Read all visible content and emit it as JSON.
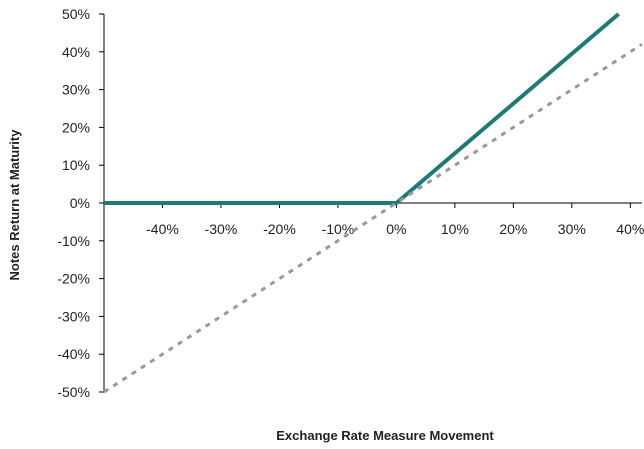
{
  "chart_data": {
    "type": "line",
    "title": "",
    "xlabel": "Exchange Rate  Measure Movement",
    "ylabel": "Notes Return at Maturity",
    "xlim": [
      -50,
      42
    ],
    "ylim": [
      -50,
      50
    ],
    "x_ticks": [
      {
        "value": -40,
        "label": "-40%"
      },
      {
        "value": -30,
        "label": "-30%"
      },
      {
        "value": -20,
        "label": "-20%"
      },
      {
        "value": -10,
        "label": "-10%"
      },
      {
        "value": 0,
        "label": "0%"
      },
      {
        "value": 10,
        "label": "10%"
      },
      {
        "value": 20,
        "label": "20%"
      },
      {
        "value": 30,
        "label": "30%"
      },
      {
        "value": 40,
        "label": "40%"
      }
    ],
    "y_ticks": [
      {
        "value": 50,
        "label": "50%"
      },
      {
        "value": 40,
        "label": "40%"
      },
      {
        "value": 30,
        "label": "30%"
      },
      {
        "value": 20,
        "label": "20%"
      },
      {
        "value": 10,
        "label": "10%"
      },
      {
        "value": 0,
        "label": "0%"
      },
      {
        "value": -10,
        "label": "-10%"
      },
      {
        "value": -20,
        "label": "-20%"
      },
      {
        "value": -30,
        "label": "-30%"
      },
      {
        "value": -40,
        "label": "-40%"
      },
      {
        "value": -50,
        "label": "-50%"
      }
    ],
    "grid": false,
    "legend": "none",
    "series": [
      {
        "style": "solid",
        "color": "#1e7b74",
        "points": [
          [
            -50,
            0
          ],
          [
            0,
            0
          ],
          [
            38,
            50
          ]
        ]
      },
      {
        "style": "dashed",
        "color": "#999999",
        "points": [
          [
            -50,
            -50
          ],
          [
            42,
            42
          ]
        ]
      }
    ]
  }
}
